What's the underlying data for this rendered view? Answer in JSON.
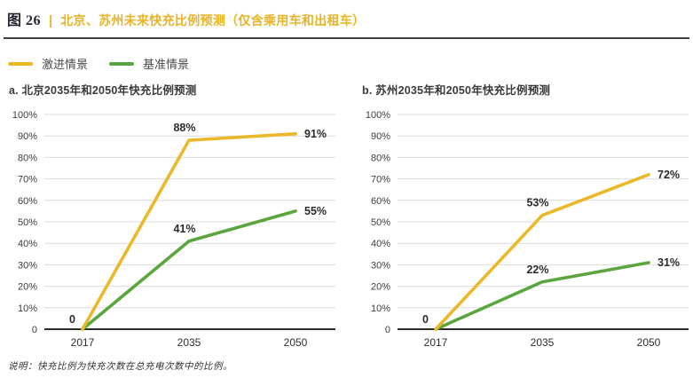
{
  "header": {
    "figure_label": "图 26",
    "separator": "|",
    "title": "北京、苏州未来快充比例预测（仅含乘用车和出租车）"
  },
  "legend": {
    "items": [
      {
        "label": "激进情景",
        "color": "#ebb829"
      },
      {
        "label": "基准情景",
        "color": "#5ba53e"
      }
    ]
  },
  "colors": {
    "aggressive": "#ebb829",
    "baseline": "#5ba53e",
    "grid": "#dcdcdc",
    "axis": "#2b2b2b",
    "title_accent": "#e9b322"
  },
  "footnote": "说明：快充比例为快充次数在总充电次数中的比例。",
  "chart_data": [
    {
      "type": "line",
      "title": "a. 北京2035年和2050年快充比例预测",
      "categories": [
        "2017",
        "2035",
        "2050"
      ],
      "series": [
        {
          "name": "激进情景",
          "color": "#ebb829",
          "values": [
            0,
            88,
            91
          ],
          "point_labels": [
            "0",
            "88%",
            "91%"
          ]
        },
        {
          "name": "基准情景",
          "color": "#5ba53e",
          "values": [
            0,
            41,
            55
          ],
          "point_labels": [
            "",
            "41%",
            "55%"
          ]
        }
      ],
      "xlabel": "",
      "ylabel": "",
      "ylim": [
        0,
        100
      ],
      "yticks": [
        0,
        10,
        20,
        30,
        40,
        50,
        60,
        70,
        80,
        90,
        100
      ],
      "ytick_labels": [
        "0",
        "10%",
        "20%",
        "30%",
        "40%",
        "50%",
        "60%",
        "70%",
        "80%",
        "90%",
        "100%"
      ],
      "grid": true,
      "legend_position": "top-left-shared"
    },
    {
      "type": "line",
      "title": "b. 苏州2035年和2050年快充比例预测",
      "categories": [
        "2017",
        "2035",
        "2050"
      ],
      "series": [
        {
          "name": "激进情景",
          "color": "#ebb829",
          "values": [
            0,
            53,
            72
          ],
          "point_labels": [
            "0",
            "53%",
            "72%"
          ]
        },
        {
          "name": "基准情景",
          "color": "#5ba53e",
          "values": [
            0,
            22,
            31
          ],
          "point_labels": [
            "",
            "22%",
            "31%"
          ]
        }
      ],
      "xlabel": "",
      "ylabel": "",
      "ylim": [
        0,
        100
      ],
      "yticks": [
        0,
        10,
        20,
        30,
        40,
        50,
        60,
        70,
        80,
        90,
        100
      ],
      "ytick_labels": [
        "0",
        "10%",
        "20%",
        "30%",
        "40%",
        "50%",
        "60%",
        "70%",
        "80%",
        "90%",
        "100%"
      ],
      "grid": true,
      "legend_position": "top-left-shared"
    }
  ]
}
